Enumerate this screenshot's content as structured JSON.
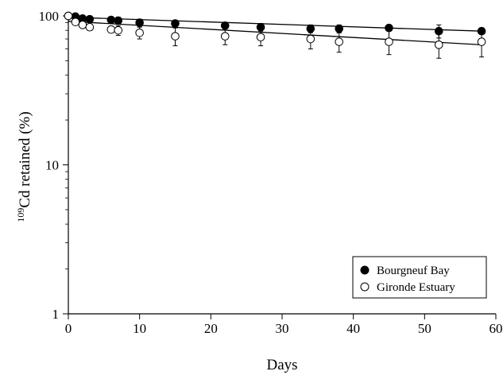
{
  "chart_data": {
    "type": "scatter",
    "xlabel": "Days",
    "ylabel_sup": "109",
    "ylabel_main": "Cd retained (%)",
    "xlim": [
      0,
      60
    ],
    "ylim": [
      1,
      100
    ],
    "y_scale": "log",
    "x_ticks": [
      0,
      10,
      20,
      30,
      40,
      50,
      60
    ],
    "y_ticks": [
      1,
      10,
      100
    ],
    "grid": false,
    "legend_position": "bottom-right",
    "series": [
      {
        "name": "Bourgneuf Bay",
        "marker": "filled-circle",
        "x": [
          0,
          1,
          2,
          3,
          6,
          7,
          10,
          15,
          22,
          27,
          34,
          38,
          45,
          52,
          58
        ],
        "y": [
          100,
          99,
          96,
          95,
          94,
          93,
          90,
          89,
          86,
          84,
          82,
          82,
          83,
          79,
          79
        ],
        "err": [
          0,
          2,
          3,
          3,
          4,
          5,
          5,
          3,
          4,
          5,
          5,
          5,
          4,
          8,
          2
        ],
        "fit": {
          "x": [
            0,
            58
          ],
          "y": [
            98,
            79
          ]
        }
      },
      {
        "name": "Gironde Estuary",
        "marker": "open-circle",
        "x": [
          0,
          1,
          2,
          3,
          6,
          7,
          10,
          15,
          22,
          27,
          34,
          38,
          45,
          52,
          58
        ],
        "y": [
          100,
          91,
          87,
          84,
          81,
          80,
          77,
          73,
          73,
          72,
          70,
          67,
          67,
          64,
          67
        ],
        "err": [
          0,
          2,
          3,
          4,
          4,
          6,
          7,
          10,
          9,
          9,
          10,
          10,
          12,
          12,
          14
        ],
        "fit": {
          "x": [
            0,
            58
          ],
          "y": [
            92,
            64
          ]
        }
      }
    ]
  }
}
